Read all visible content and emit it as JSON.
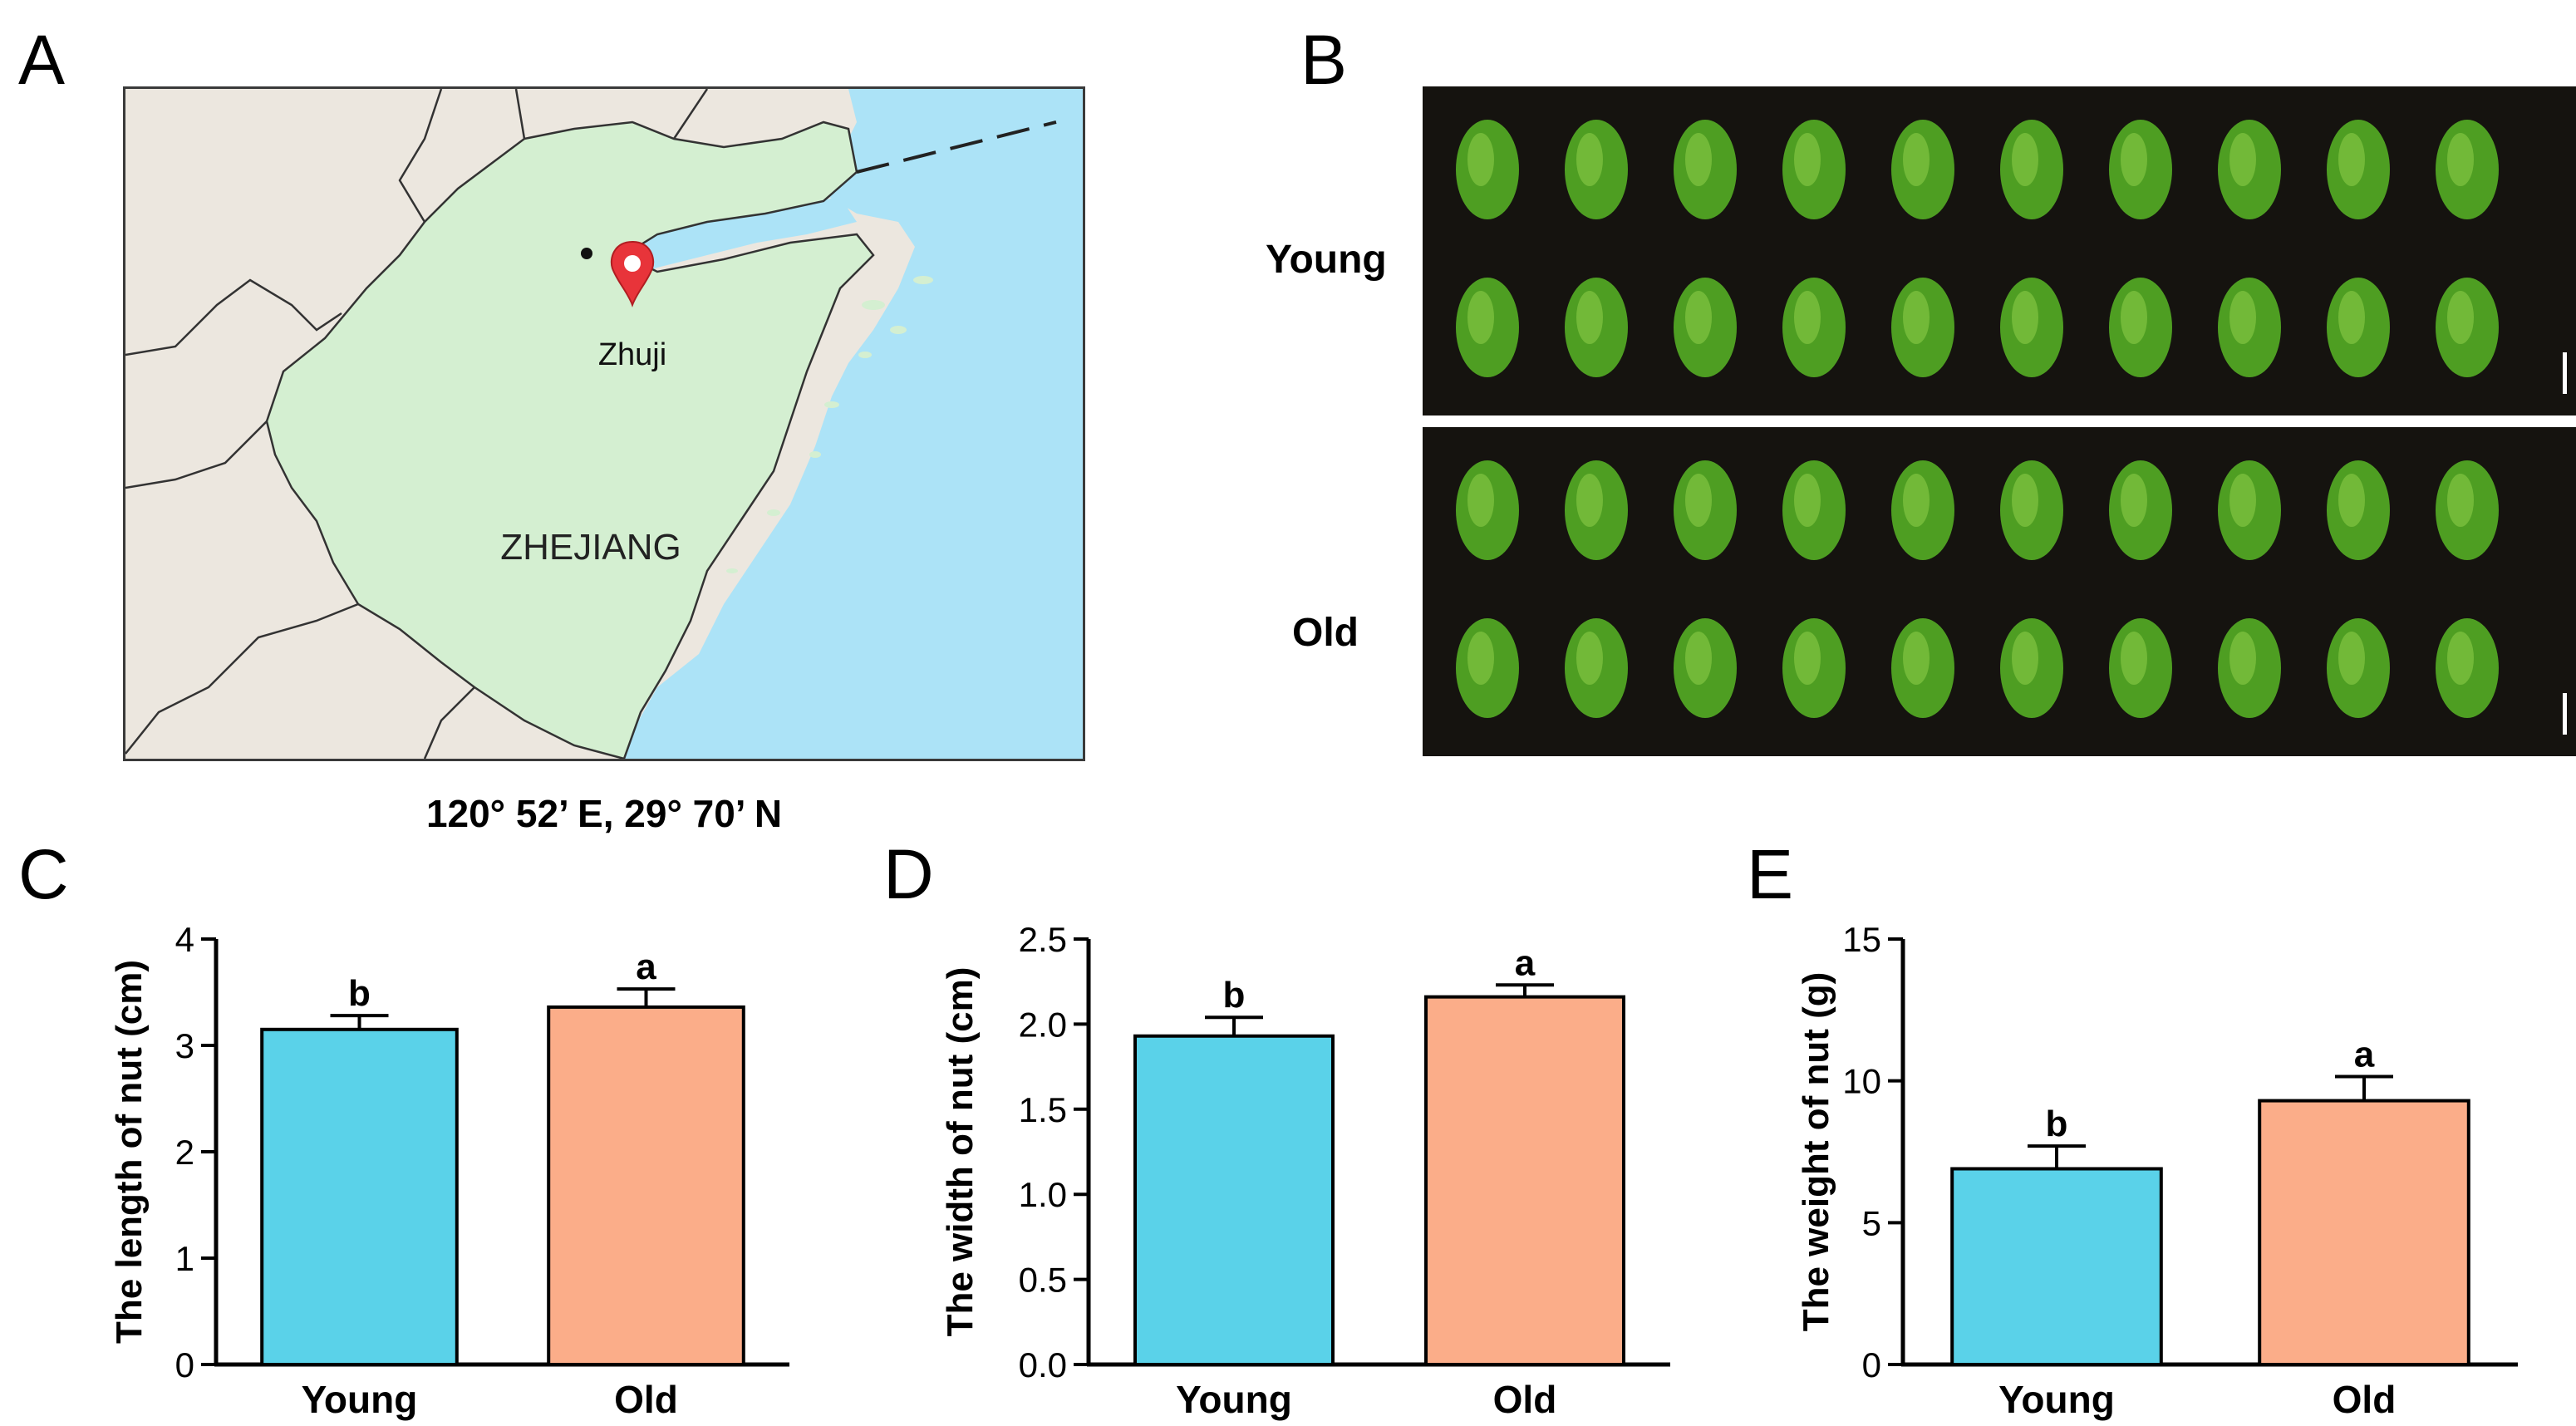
{
  "panels": {
    "a": "A",
    "b": "B",
    "c": "C",
    "d": "D",
    "e": "E"
  },
  "map": {
    "province_label": "ZHEJIANG",
    "city_label": "Zhuji",
    "coordinates": "120° 52’ E, 29° 70’ N",
    "colors": {
      "land": "#ece7df",
      "province": "#d4efd1",
      "sea": "#ace3f7",
      "marker": "#e8343a",
      "border": "#333333"
    }
  },
  "photos": {
    "row_labels": [
      "Young",
      "Old"
    ],
    "nuts_per_row": 10,
    "colors": {
      "background": "#15130f",
      "nut": "#4e9e22",
      "nut_highlight": "#8fd04a",
      "scale_bar": "#ffffff"
    }
  },
  "bar_colors": {
    "Young": "#5ad2e9",
    "Old": "#fbad89"
  },
  "chart_data": [
    {
      "type": "bar",
      "categories": [
        "Young",
        "Old"
      ],
      "values": [
        3.15,
        3.36
      ],
      "errors": [
        0.13,
        0.17
      ],
      "letters": [
        "b",
        "a"
      ],
      "ylabel": "The length of nut (cm)",
      "ylim": [
        0,
        4
      ],
      "yticks": [
        "0",
        "1",
        "2",
        "3",
        "4"
      ],
      "tick_values": [
        0,
        1,
        2,
        3,
        4
      ]
    },
    {
      "type": "bar",
      "categories": [
        "Young",
        "Old"
      ],
      "values": [
        1.93,
        2.16
      ],
      "errors": [
        0.11,
        0.07
      ],
      "letters": [
        "b",
        "a"
      ],
      "ylabel": "The width of nut (cm)",
      "ylim": [
        0,
        2.5
      ],
      "yticks": [
        "0.0",
        "0.5",
        "1.0",
        "1.5",
        "2.0",
        "2.5"
      ],
      "tick_values": [
        0,
        0.5,
        1.0,
        1.5,
        2.0,
        2.5
      ]
    },
    {
      "type": "bar",
      "categories": [
        "Young",
        "Old"
      ],
      "values": [
        6.9,
        9.3
      ],
      "errors": [
        0.8,
        0.85
      ],
      "letters": [
        "b",
        "a"
      ],
      "ylabel": "The weight of nut (g)",
      "ylim": [
        0,
        15
      ],
      "yticks": [
        "0",
        "5",
        "10",
        "15"
      ],
      "tick_values": [
        0,
        5,
        10,
        15
      ]
    }
  ]
}
